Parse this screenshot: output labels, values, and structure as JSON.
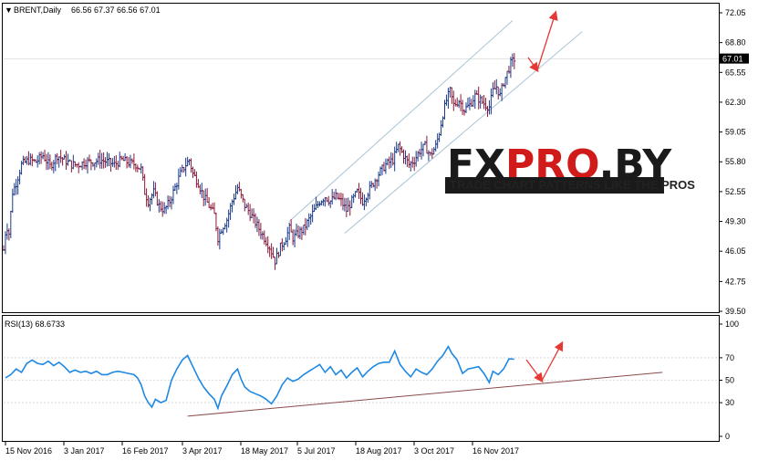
{
  "header": {
    "symbol_label": "BRENT,Daily",
    "ohlc": "66.56 67.37 66.56 67.01"
  },
  "watermark": {
    "brand": "FXPRO.BY",
    "brand_parts": [
      "FX",
      "PRO",
      ".BY"
    ],
    "tagline": "TRADE CHART PATTERNS LIKE THE PROS",
    "colors": {
      "dark": "#1a1a1a",
      "accent": "#d11a1a"
    }
  },
  "colors": {
    "up_bar": "#1a3a8a",
    "down_bar": "#8a1a3a",
    "rsi_line": "#1e88e5",
    "trend_channel": "#a9c4d6",
    "rsi_trendline": "#8b4a4a",
    "arrow": "#e53935",
    "grid": "#000000"
  },
  "rsi_panel": {
    "label": "RSI(13) 68.6733"
  },
  "chart_data": [
    {
      "type": "candlestick",
      "title": "BRENT,Daily",
      "price_label": "67.01",
      "ylim": [
        39.5,
        72.05
      ],
      "y_ticks": [
        "72.05",
        "68.80",
        "65.55",
        "62.30",
        "59.05",
        "55.80",
        "52.55",
        "49.30",
        "46.05",
        "42.75",
        "39.50"
      ],
      "x_ticks": [
        "15 Nov 2016",
        "3 Jan 2017",
        "16 Feb 2017",
        "3 Apr 2017",
        "18 May 2017",
        "5 Jul 2017",
        "18 Aug 2017",
        "3 Oct 2017",
        "16 Nov 2017"
      ],
      "close_path": [
        [
          0,
          46.2
        ],
        [
          3,
          49.0
        ],
        [
          6,
          48.0
        ],
        [
          10,
          52.5
        ],
        [
          14,
          53.5
        ],
        [
          20,
          55.5
        ],
        [
          28,
          56.0
        ],
        [
          36,
          55.8
        ],
        [
          44,
          56.5
        ],
        [
          52,
          55.3
        ],
        [
          60,
          56.5
        ],
        [
          68,
          56.0
        ],
        [
          76,
          55.5
        ],
        [
          84,
          55.5
        ],
        [
          92,
          55.8
        ],
        [
          100,
          55.8
        ],
        [
          108,
          56.0
        ],
        [
          116,
          55.8
        ],
        [
          124,
          55.5
        ],
        [
          132,
          56.0
        ],
        [
          140,
          55.7
        ],
        [
          148,
          55.5
        ],
        [
          154,
          55.0
        ],
        [
          158,
          52.5
        ],
        [
          162,
          51.5
        ],
        [
          168,
          52.5
        ],
        [
          174,
          51.0
        ],
        [
          180,
          50.5
        ],
        [
          186,
          51.5
        ],
        [
          192,
          53.0
        ],
        [
          198,
          54.5
        ],
        [
          204,
          55.5
        ],
        [
          208,
          56.0
        ],
        [
          212,
          54.5
        ],
        [
          218,
          53.5
        ],
        [
          224,
          52.0
        ],
        [
          230,
          51.0
        ],
        [
          236,
          50.0
        ],
        [
          240,
          47.5
        ],
        [
          244,
          48.5
        ],
        [
          250,
          49.5
        ],
        [
          256,
          51.5
        ],
        [
          262,
          53.0
        ],
        [
          266,
          52.0
        ],
        [
          270,
          51.0
        ],
        [
          274,
          50.5
        ],
        [
          280,
          49.5
        ],
        [
          286,
          48.5
        ],
        [
          292,
          47.5
        ],
        [
          298,
          46.5
        ],
        [
          304,
          45.0
        ],
        [
          310,
          46.5
        ],
        [
          316,
          47.5
        ],
        [
          320,
          48.5
        ],
        [
          324,
          47.5
        ],
        [
          330,
          48.0
        ],
        [
          336,
          48.5
        ],
        [
          342,
          49.5
        ],
        [
          348,
          50.5
        ],
        [
          354,
          51.5
        ],
        [
          360,
          52.0
        ],
        [
          366,
          51.5
        ],
        [
          372,
          52.0
        ],
        [
          378,
          51.5
        ],
        [
          384,
          50.5
        ],
        [
          390,
          51.5
        ],
        [
          396,
          52.5
        ],
        [
          402,
          51.5
        ],
        [
          408,
          52.5
        ],
        [
          414,
          53.5
        ],
        [
          420,
          54.5
        ],
        [
          428,
          55.5
        ],
        [
          436,
          56.0
        ],
        [
          442,
          57.5
        ],
        [
          448,
          56.5
        ],
        [
          454,
          55.5
        ],
        [
          460,
          56.0
        ],
        [
          466,
          57.0
        ],
        [
          472,
          57.5
        ],
        [
          478,
          56.5
        ],
        [
          484,
          57.5
        ],
        [
          488,
          59.0
        ],
        [
          492,
          61.0
        ],
        [
          496,
          62.5
        ],
        [
          500,
          63.5
        ],
        [
          504,
          62.0
        ],
        [
          510,
          62.5
        ],
        [
          516,
          61.5
        ],
        [
          522,
          62.0
        ],
        [
          528,
          63.0
        ],
        [
          534,
          62.5
        ],
        [
          540,
          62.0
        ],
        [
          544,
          61.8
        ],
        [
          548,
          63.5
        ],
        [
          552,
          64.0
        ],
        [
          556,
          63.0
        ],
        [
          560,
          64.5
        ],
        [
          564,
          65.5
        ],
        [
          568,
          66.5
        ],
        [
          572,
          67.01
        ]
      ]
    },
    {
      "type": "line",
      "title": "RSI(13) 68.6733",
      "ylim": [
        0,
        100
      ],
      "y_ticks": [
        "100",
        "70",
        "50",
        "30",
        "0"
      ],
      "values": [
        [
          2,
          52
        ],
        [
          8,
          55
        ],
        [
          14,
          60
        ],
        [
          20,
          57
        ],
        [
          26,
          65
        ],
        [
          32,
          68
        ],
        [
          38,
          65
        ],
        [
          44,
          64
        ],
        [
          50,
          67
        ],
        [
          56,
          63
        ],
        [
          62,
          66
        ],
        [
          68,
          62
        ],
        [
          74,
          57
        ],
        [
          80,
          59
        ],
        [
          86,
          57
        ],
        [
          92,
          58
        ],
        [
          98,
          56
        ],
        [
          104,
          58
        ],
        [
          110,
          55
        ],
        [
          116,
          55
        ],
        [
          122,
          57
        ],
        [
          128,
          58
        ],
        [
          134,
          57
        ],
        [
          140,
          56
        ],
        [
          146,
          55
        ],
        [
          150,
          52
        ],
        [
          154,
          46
        ],
        [
          158,
          36
        ],
        [
          162,
          30
        ],
        [
          166,
          26
        ],
        [
          170,
          33
        ],
        [
          176,
          30
        ],
        [
          182,
          32
        ],
        [
          188,
          50
        ],
        [
          194,
          60
        ],
        [
          200,
          68
        ],
        [
          206,
          72
        ],
        [
          212,
          62
        ],
        [
          218,
          52
        ],
        [
          224,
          44
        ],
        [
          230,
          38
        ],
        [
          236,
          33
        ],
        [
          240,
          25
        ],
        [
          244,
          36
        ],
        [
          250,
          45
        ],
        [
          256,
          55
        ],
        [
          262,
          60
        ],
        [
          266,
          51
        ],
        [
          270,
          44
        ],
        [
          276,
          40
        ],
        [
          282,
          38
        ],
        [
          288,
          36
        ],
        [
          294,
          33
        ],
        [
          300,
          29
        ],
        [
          306,
          36
        ],
        [
          312,
          46
        ],
        [
          318,
          52
        ],
        [
          324,
          49
        ],
        [
          330,
          51
        ],
        [
          336,
          55
        ],
        [
          342,
          58
        ],
        [
          348,
          61
        ],
        [
          354,
          64
        ],
        [
          360,
          57
        ],
        [
          366,
          62
        ],
        [
          372,
          55
        ],
        [
          378,
          59
        ],
        [
          384,
          52
        ],
        [
          390,
          57
        ],
        [
          396,
          61
        ],
        [
          402,
          53
        ],
        [
          408,
          58
        ],
        [
          414,
          62
        ],
        [
          420,
          65
        ],
        [
          426,
          66
        ],
        [
          432,
          66
        ],
        [
          438,
          76
        ],
        [
          444,
          64
        ],
        [
          450,
          58
        ],
        [
          456,
          53
        ],
        [
          462,
          60
        ],
        [
          468,
          57
        ],
        [
          474,
          55
        ],
        [
          480,
          60
        ],
        [
          486,
          67
        ],
        [
          492,
          72
        ],
        [
          498,
          80
        ],
        [
          502,
          74
        ],
        [
          508,
          68
        ],
        [
          514,
          56
        ],
        [
          520,
          60
        ],
        [
          526,
          61
        ],
        [
          532,
          62
        ],
        [
          538,
          56
        ],
        [
          544,
          48
        ],
        [
          548,
          58
        ],
        [
          554,
          55
        ],
        [
          560,
          60
        ],
        [
          566,
          69
        ],
        [
          572,
          68.67
        ]
      ]
    }
  ]
}
